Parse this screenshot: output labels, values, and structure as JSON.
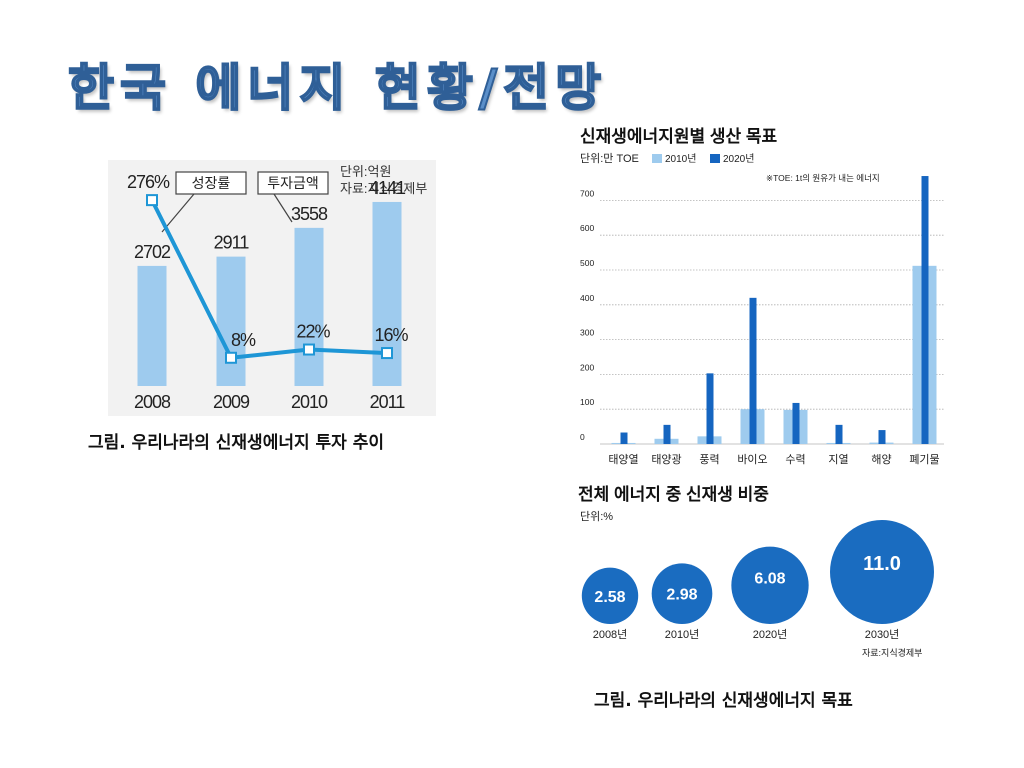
{
  "slide": {
    "title": "한국 에너지 현황/전망",
    "caption_left": "그림. 우리나라의 신재생에너지 투자 추이",
    "caption_right": "그림. 우리나라의 신재생에너지 목표"
  },
  "colors": {
    "title": "#5b8fc9",
    "bar_light": "#9ecbee",
    "bar_dark": "#1565c0",
    "line": "#1e96d6",
    "bubble": "#1a6cc0"
  },
  "chart_data": [
    {
      "type": "bar",
      "title": "",
      "unit_note": "단위:억원",
      "source_note": "자료:지식경제부",
      "categories": [
        "2008",
        "2009",
        "2010",
        "2011"
      ],
      "series": [
        {
          "name": "투자금액",
          "values": [
            2702,
            2911,
            3558,
            4141
          ],
          "labels": [
            "2702",
            "2911",
            "3558",
            "4141"
          ]
        },
        {
          "name": "성장률",
          "type": "line",
          "values": [
            276,
            8,
            22,
            16
          ],
          "labels": [
            "276%",
            "8%",
            "22%",
            "16%"
          ]
        }
      ],
      "ylim": [
        0,
        4500
      ],
      "y2lim": [
        -40,
        300
      ],
      "grid": false,
      "legend": "callouts-top"
    },
    {
      "type": "bar",
      "title": "신재생에너지원별 생산 목표",
      "unit_note": "단위:만 TOE",
      "note": "※TOE: 1t의 원유가 내는 에너지",
      "categories": [
        "태양열",
        "태양광",
        "풍력",
        "바이오",
        "수력",
        "지열",
        "해양",
        "폐기물"
      ],
      "series": [
        {
          "name": "2010년",
          "values": [
            3,
            15,
            22,
            100,
            98,
            3,
            4,
            512
          ]
        },
        {
          "name": "2020년",
          "values": [
            33,
            55,
            203,
            420,
            118,
            55,
            40,
            770
          ]
        }
      ],
      "yticks": [
        "0",
        "100",
        "200",
        "300",
        "400",
        "500",
        "600",
        "700"
      ],
      "ylim": [
        0,
        780
      ],
      "grid": true,
      "legend": "top-left"
    },
    {
      "type": "bubble",
      "title": "전체 에너지 중 신재생 비중",
      "unit_note": "단위:%",
      "source_note": "자료:지식경제부",
      "categories": [
        "2008년",
        "2010년",
        "2020년",
        "2030년"
      ],
      "values": [
        2.58,
        2.98,
        6.08,
        11.0
      ],
      "labels": [
        "2.58",
        "2.98",
        "6.08",
        "11.0"
      ]
    }
  ]
}
